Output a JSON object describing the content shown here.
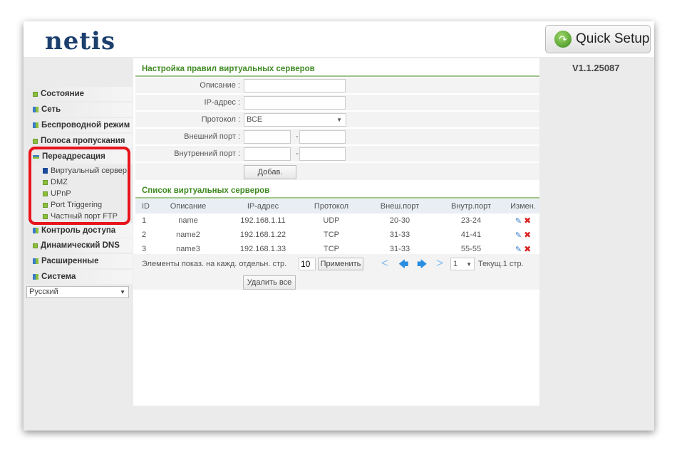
{
  "header": {
    "logo": "netis",
    "quick_setup": "Quick Setup",
    "version": "V1.1.25087"
  },
  "sidebar": {
    "items": [
      {
        "label": "Состояние",
        "icon": "square"
      },
      {
        "label": "Сеть",
        "icon": "grid"
      },
      {
        "label": "Беспроводной режим",
        "icon": "grid"
      },
      {
        "label": "Полоса пропускания",
        "icon": "square"
      },
      {
        "label": "Переадресация",
        "icon": "minus",
        "expanded": true
      }
    ],
    "subitems": [
      {
        "label": "Виртуальный сервер",
        "active": true
      },
      {
        "label": "DMZ"
      },
      {
        "label": "UPnP"
      },
      {
        "label": "Port Triggering"
      },
      {
        "label": "Частный порт FTP"
      }
    ],
    "items2": [
      {
        "label": "Контроль доступа",
        "icon": "grid"
      },
      {
        "label": "Динамический DNS",
        "icon": "square"
      },
      {
        "label": "Расширенные",
        "icon": "grid"
      },
      {
        "label": "Система",
        "icon": "grid"
      }
    ],
    "language": "Русский",
    "highlight_color": "#e8141c"
  },
  "form": {
    "title": "Настройка правил виртуальных серверов",
    "description_label": "Описание :",
    "description_value": "",
    "ip_label": "IP-адрес :",
    "ip_value": "",
    "protocol_label": "Протокол :",
    "protocol_value": "ВСЕ",
    "ext_port_label": "Внешний порт :",
    "int_port_label": "Внутренний порт :",
    "dash": "-",
    "add_button": "Добав."
  },
  "list": {
    "title": "Список виртуальных серверов",
    "columns": [
      "ID",
      "Описание",
      "IP-адрес",
      "Протокол",
      "Внеш.порт",
      "Внутр.порт",
      "Измен."
    ],
    "rows": [
      [
        "1",
        "name",
        "192.168.1.11",
        "UDP",
        "20-30",
        "23-24"
      ],
      [
        "2",
        "name2",
        "192.168.1.22",
        "TCP",
        "31-33",
        "41-41"
      ],
      [
        "3",
        "name3",
        "192.168.1.33",
        "TCP",
        "31-33",
        "55-55"
      ]
    ],
    "per_page_label": "Элементы показ. на кажд. отдельн. стр.",
    "per_page_value": "10",
    "apply_button": "Применить",
    "page_select": "1",
    "current_page": "Текущ.1 стр.",
    "delete_all_button": "Удалить все"
  },
  "colors": {
    "accent_green": "#3f8a22",
    "logo_blue": "#1c3f6e"
  }
}
